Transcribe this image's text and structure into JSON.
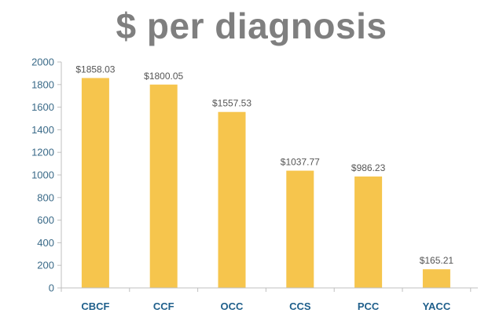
{
  "chart_data": {
    "type": "bar",
    "title": "$ per diagnosis",
    "categories": [
      "CBCF",
      "CCF",
      "OCC",
      "CCS",
      "PCC",
      "YACC"
    ],
    "values": [
      1858.03,
      1800.05,
      1557.53,
      1037.77,
      986.23,
      165.21
    ],
    "data_labels": [
      "$1858.03",
      "$1800.05",
      "$1557.53",
      "$1037.77",
      "$986.23",
      "$165.21"
    ],
    "xlabel": "",
    "ylabel": "",
    "ylim": [
      0,
      2000
    ],
    "yticks": [
      0,
      200,
      400,
      600,
      800,
      1000,
      1200,
      1400,
      1600,
      1800,
      2000
    ],
    "grid": false,
    "legend": "none",
    "colors": {
      "bar": "#f6c54d",
      "title": "#7f7f7f",
      "axis": "#bfbfbf",
      "tick_label": "#3a6a88",
      "category_label": "#1f5f8b",
      "data_label": "#555555"
    }
  }
}
